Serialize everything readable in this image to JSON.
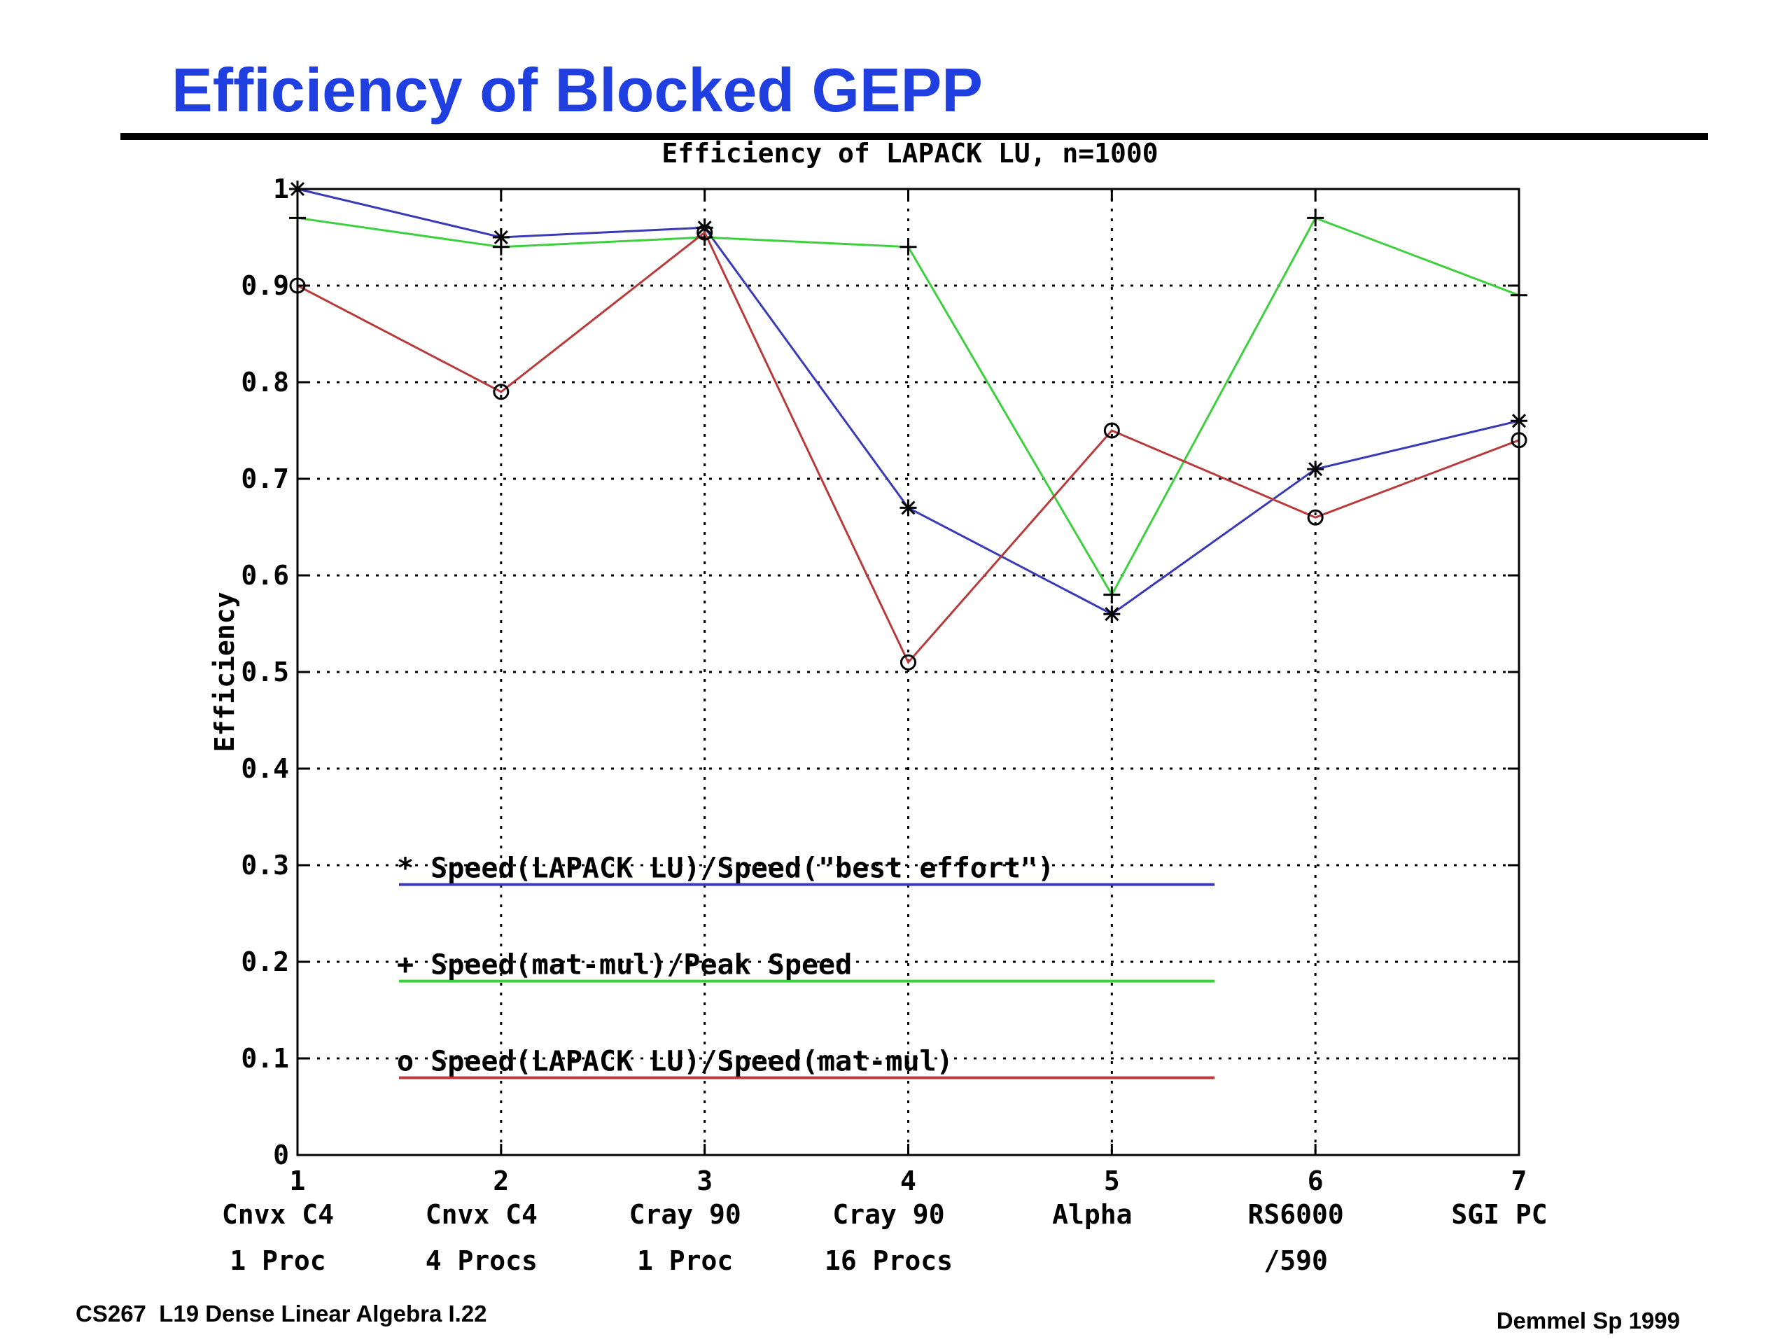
{
  "slide": {
    "title": "Efficiency of Blocked GEPP",
    "footer_left": "CS267  L19 Dense Linear Algebra I.22",
    "footer_right": "Demmel Sp 1999"
  },
  "chart_data": {
    "type": "line",
    "title": "Efficiency of LAPACK LU, n=1000",
    "ylabel": "Efficiency",
    "xlabel": "",
    "x": [
      1,
      2,
      3,
      4,
      5,
      6,
      7
    ],
    "xlim": [
      1,
      7
    ],
    "ylim": [
      0,
      1
    ],
    "xticks": [
      {
        "value": 1,
        "line1": "1",
        "line2": "Cnvx C4",
        "line3": "1 Proc"
      },
      {
        "value": 2,
        "line1": "2",
        "line2": "Cnvx C4",
        "line3": "4 Procs"
      },
      {
        "value": 3,
        "line1": "3",
        "line2": "Cray 90",
        "line3": "1 Proc"
      },
      {
        "value": 4,
        "line1": "4",
        "line2": "Cray 90",
        "line3": "16 Procs"
      },
      {
        "value": 5,
        "line1": "5",
        "line2": "Alpha",
        "line3": ""
      },
      {
        "value": 6,
        "line1": "6",
        "line2": "RS6000",
        "line3": "/590"
      },
      {
        "value": 7,
        "line1": "7",
        "line2": "SGI PC",
        "line3": ""
      }
    ],
    "yticks": [
      "0",
      "0.1",
      "0.2",
      "0.3",
      "0.4",
      "0.5",
      "0.6",
      "0.7",
      "0.8",
      "0.9",
      "1"
    ],
    "grid": true,
    "series": [
      {
        "marker": "*",
        "color": "#3a3ab8",
        "label": "* Speed(LAPACK LU)/Speed(\"best effort\")",
        "legend_y": 0.28,
        "values": [
          1.0,
          0.95,
          0.96,
          0.67,
          0.56,
          0.71,
          0.76
        ]
      },
      {
        "marker": "+",
        "color": "#3ecf3e",
        "label": "+ Speed(mat-mul)/Peak Speed",
        "legend_y": 0.18,
        "values": [
          0.97,
          0.94,
          0.95,
          0.94,
          0.58,
          0.97,
          0.89
        ]
      },
      {
        "marker": "o",
        "color": "#b83a3a",
        "label": "o Speed(LAPACK LU)/Speed(mat-mul)",
        "legend_y": 0.08,
        "values": [
          0.9,
          0.79,
          0.955,
          0.51,
          0.75,
          0.66,
          0.74
        ]
      }
    ]
  }
}
